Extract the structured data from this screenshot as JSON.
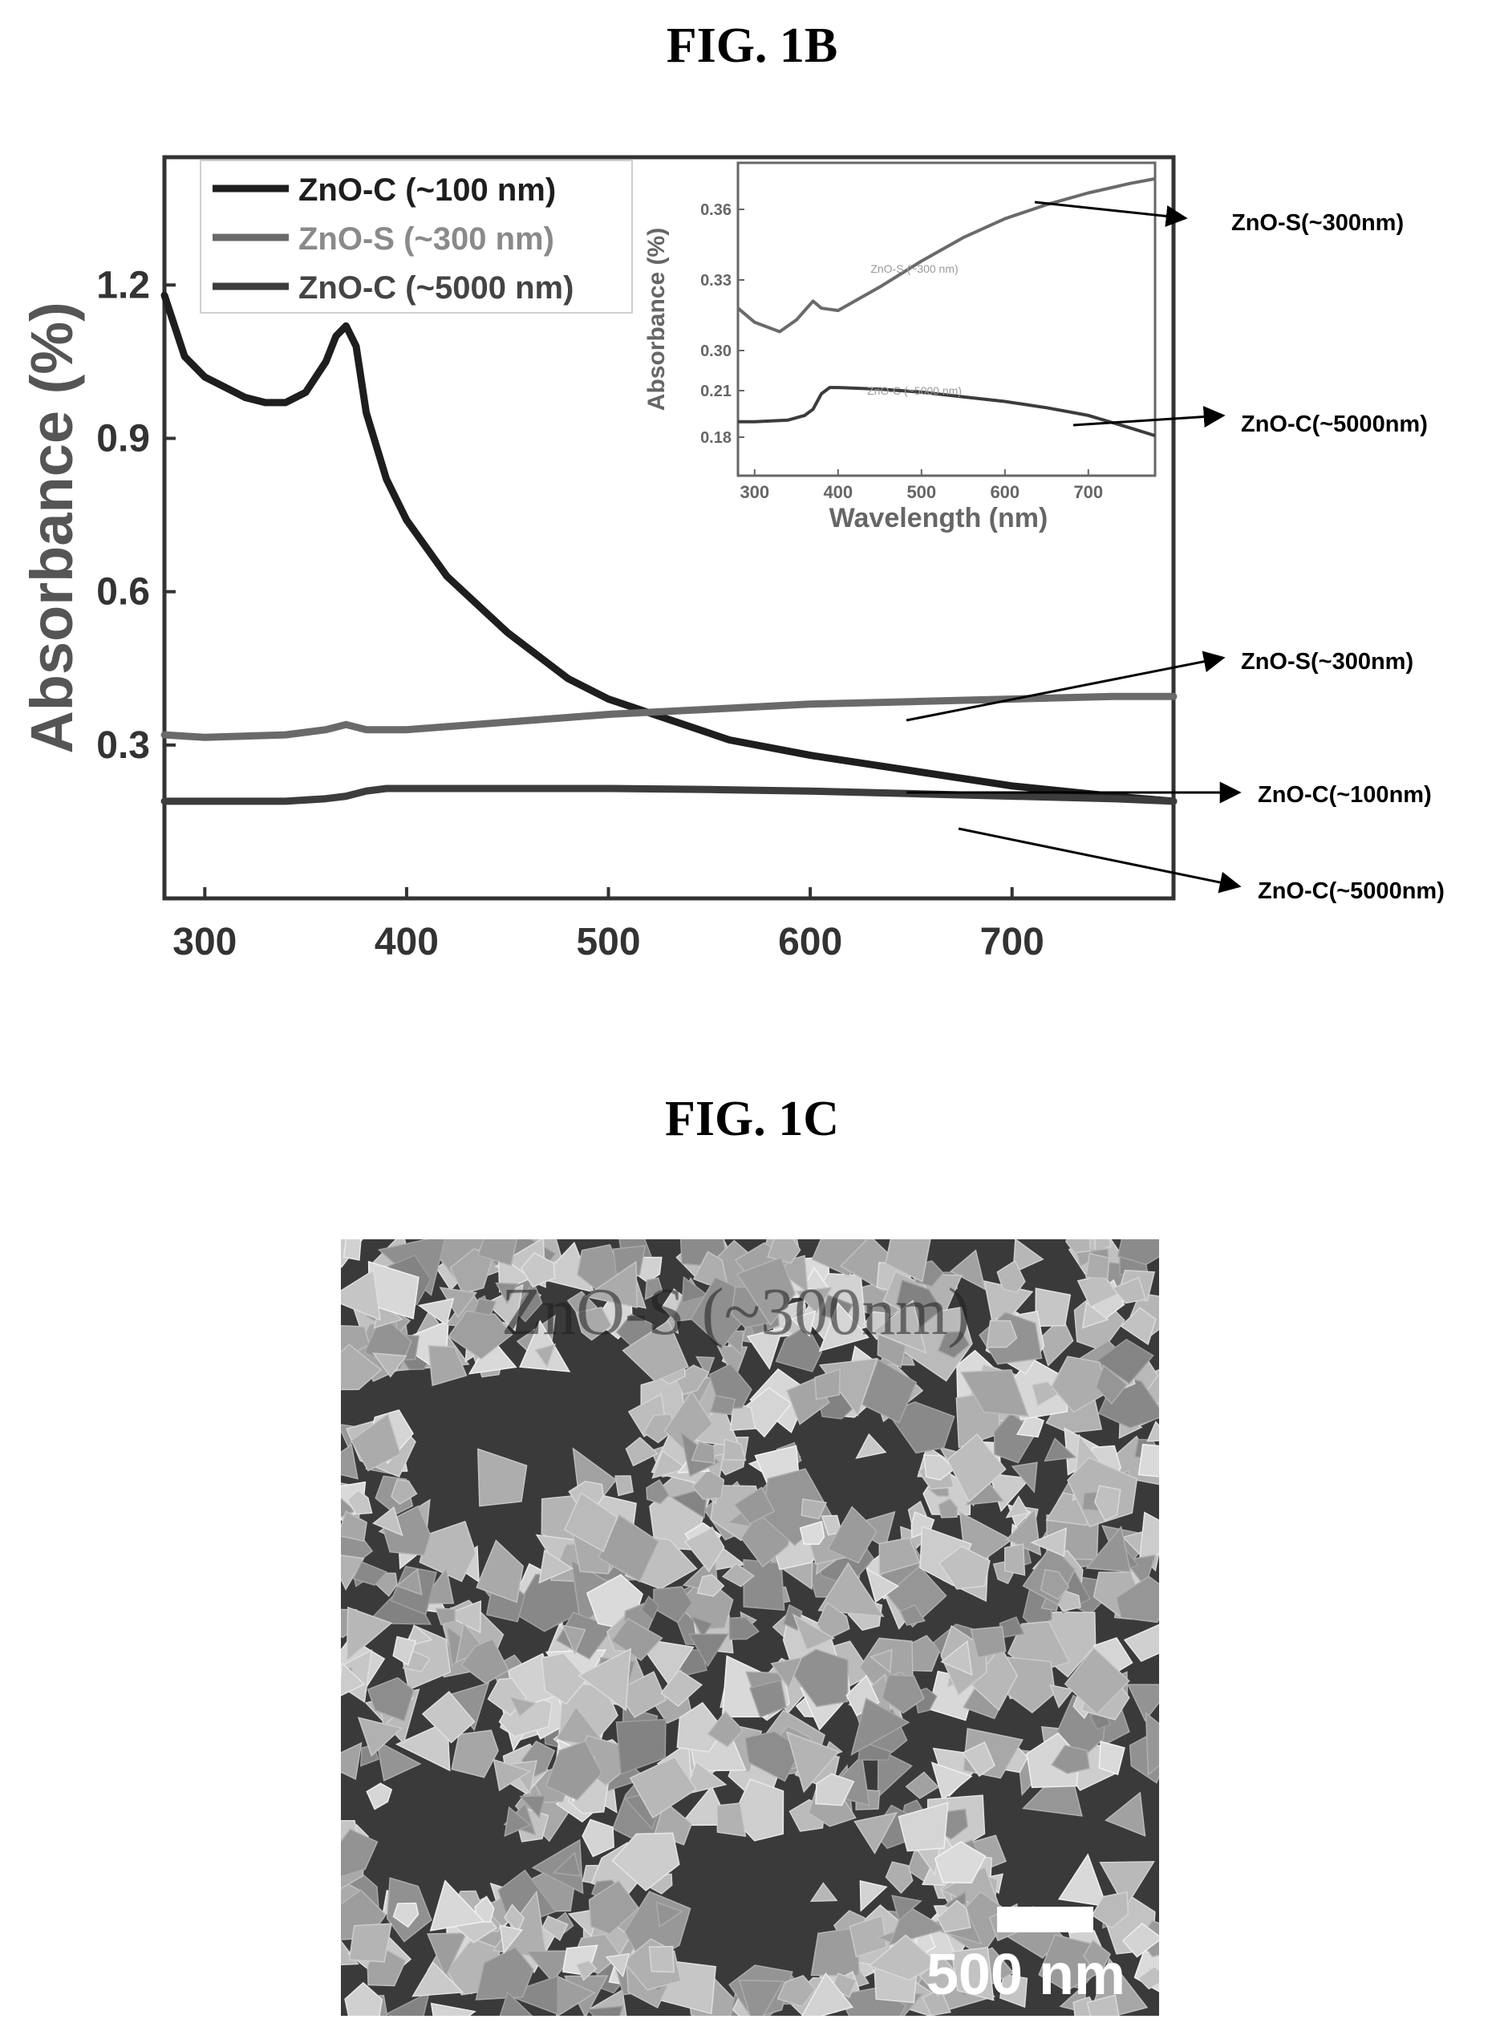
{
  "figure_1b": {
    "title": "FIG. 1B",
    "ylabel": "Absorbance (%)",
    "legend": [
      "ZnO-C (~100 nm)",
      "ZnO-S (~300 nm)",
      "ZnO-C (~5000 nm)"
    ],
    "callouts": [
      "ZnO-S(~300nm)",
      "ZnO-C(~5000nm)",
      "ZnO-S(~300nm)",
      "ZnO-C(~100nm)",
      "ZnO-C(~5000nm)"
    ],
    "inset": {
      "xlabel": "Wavelength (nm)",
      "ylabel": "Absorbance (%)",
      "curve_labels": [
        "ZnO-S (~300 nm)",
        "ZnO-C (~5000 nm)"
      ]
    }
  },
  "figure_1c": {
    "title": "FIG. 1C",
    "scale_label": "500 nm",
    "overlay_text": "ZnO-S (~300nm)"
  },
  "colors": {
    "zno_c_100": "#1e1e1e",
    "zno_s_300": "#6a6a6a",
    "zno_c_5000": "#3c3c3c"
  },
  "chart_data": [
    {
      "type": "line",
      "title": "",
      "xlabel": "",
      "ylabel": "Absorbance (%)",
      "xlim": [
        280,
        780
      ],
      "ylim": [
        0.0,
        1.45
      ],
      "xticks": [
        300,
        400,
        500,
        600,
        700
      ],
      "yticks": [
        0.3,
        0.6,
        0.9,
        1.2
      ],
      "legend_position": "top-left",
      "series": [
        {
          "name": "ZnO-C (~100 nm)",
          "x": [
            280,
            290,
            300,
            310,
            320,
            330,
            340,
            350,
            360,
            365,
            370,
            375,
            380,
            390,
            400,
            420,
            450,
            480,
            500,
            530,
            560,
            600,
            650,
            700,
            750,
            780
          ],
          "y": [
            1.18,
            1.06,
            1.02,
            1.0,
            0.98,
            0.97,
            0.97,
            0.99,
            1.05,
            1.1,
            1.12,
            1.08,
            0.95,
            0.82,
            0.74,
            0.63,
            0.52,
            0.43,
            0.39,
            0.35,
            0.31,
            0.28,
            0.25,
            0.22,
            0.2,
            0.19
          ]
        },
        {
          "name": "ZnO-S (~300 nm)",
          "x": [
            280,
            300,
            340,
            360,
            370,
            380,
            400,
            450,
            500,
            550,
            600,
            650,
            700,
            750,
            780
          ],
          "y": [
            0.32,
            0.315,
            0.32,
            0.33,
            0.34,
            0.33,
            0.33,
            0.345,
            0.36,
            0.37,
            0.38,
            0.385,
            0.39,
            0.395,
            0.395
          ]
        },
        {
          "name": "ZnO-C (~5000 nm)",
          "x": [
            280,
            300,
            340,
            360,
            370,
            380,
            390,
            400,
            450,
            500,
            550,
            600,
            650,
            700,
            750,
            780
          ],
          "y": [
            0.19,
            0.19,
            0.19,
            0.195,
            0.2,
            0.21,
            0.215,
            0.215,
            0.215,
            0.215,
            0.213,
            0.21,
            0.205,
            0.2,
            0.195,
            0.19
          ]
        }
      ]
    },
    {
      "type": "line",
      "title": "",
      "xlabel": "Wavelength (nm)",
      "ylabel": "Absorbance (%)",
      "xlim": [
        280,
        780
      ],
      "yticks": [
        0.18,
        0.21,
        0.3,
        0.33,
        0.36
      ],
      "xticks": [
        300,
        400,
        500,
        600,
        700
      ],
      "series": [
        {
          "name": "ZnO-S (~300 nm)",
          "x": [
            280,
            300,
            330,
            350,
            370,
            380,
            400,
            450,
            500,
            550,
            600,
            650,
            700,
            750,
            780
          ],
          "y": [
            0.318,
            0.312,
            0.308,
            0.313,
            0.321,
            0.318,
            0.317,
            0.327,
            0.338,
            0.348,
            0.356,
            0.362,
            0.367,
            0.371,
            0.373
          ]
        },
        {
          "name": "ZnO-C (~5000 nm)",
          "x": [
            280,
            300,
            340,
            360,
            370,
            380,
            390,
            400,
            450,
            500,
            550,
            600,
            650,
            700,
            750,
            780
          ],
          "y": [
            0.19,
            0.19,
            0.191,
            0.194,
            0.198,
            0.208,
            0.212,
            0.212,
            0.211,
            0.209,
            0.206,
            0.203,
            0.199,
            0.194,
            0.186,
            0.181
          ]
        }
      ]
    }
  ]
}
